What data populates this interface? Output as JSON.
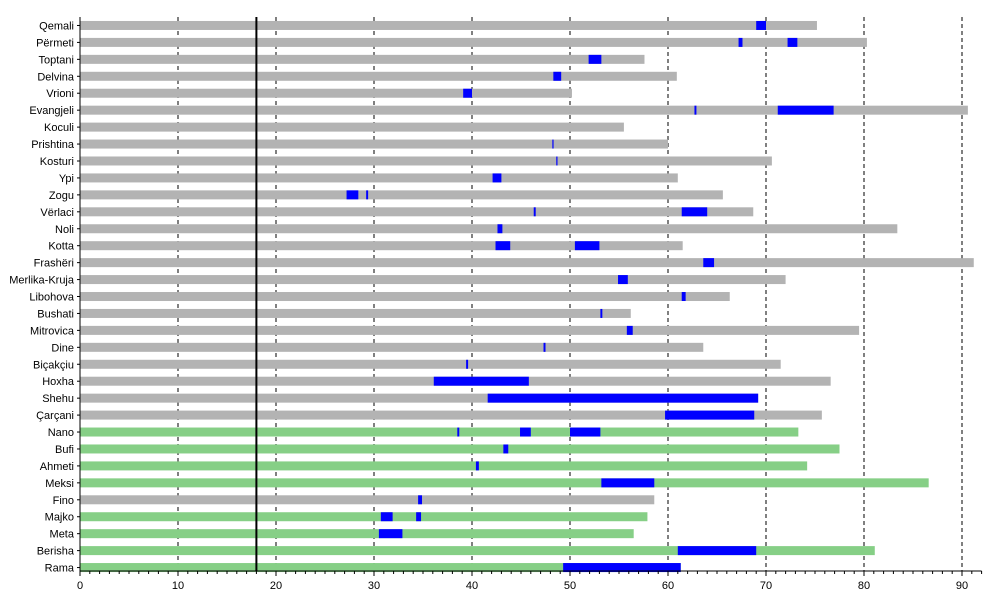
{
  "chart_data": {
    "type": "bar",
    "orientation": "horizontal",
    "xlim": [
      0,
      92
    ],
    "xticks": [
      0,
      10,
      20,
      30,
      40,
      50,
      60,
      70,
      80,
      90
    ],
    "minor_tick_step": 1,
    "grid": "vertical dashed at major ticks",
    "reference_line_x": 18,
    "colors": {
      "gray": "#b3b3b3",
      "green": "#86cf86",
      "blue": "#0000ff",
      "grid": "#000000"
    },
    "rows": [
      {
        "label": "Qemali",
        "end": 75.2,
        "color": "gray",
        "segments": [
          [
            69,
            70
          ]
        ]
      },
      {
        "label": "Përmeti",
        "end": 80.3,
        "color": "gray",
        "segments": [
          [
            67.2,
            67.6
          ],
          [
            72.2,
            73.2
          ]
        ]
      },
      {
        "label": "Toptani",
        "end": 57.6,
        "color": "gray",
        "segments": [
          [
            51.9,
            53.2
          ]
        ]
      },
      {
        "label": "Delvina",
        "end": 60.9,
        "color": "gray",
        "segments": [
          [
            48.3,
            49.1
          ]
        ]
      },
      {
        "label": "Vrioni",
        "end": 50.2,
        "color": "gray",
        "segments": [
          [
            39.1,
            40
          ]
        ]
      },
      {
        "label": "Evangjeli",
        "end": 90.6,
        "color": "gray",
        "segments": [
          [
            62.7,
            62.9
          ],
          [
            71.2,
            76.9
          ]
        ]
      },
      {
        "label": "Koculi",
        "end": 55.5,
        "color": "gray",
        "segments": []
      },
      {
        "label": "Prishtina",
        "end": 60,
        "color": "gray",
        "segments": [
          [
            48.2,
            48.3
          ]
        ]
      },
      {
        "label": "Kosturi",
        "end": 70.6,
        "color": "gray",
        "segments": [
          [
            48.6,
            48.7
          ]
        ]
      },
      {
        "label": "Ypi",
        "end": 61,
        "color": "gray",
        "segments": [
          [
            42.1,
            43
          ]
        ]
      },
      {
        "label": "Zogu",
        "end": 65.6,
        "color": "gray",
        "segments": [
          [
            27.2,
            28.4
          ],
          [
            29.2,
            29.4
          ]
        ]
      },
      {
        "label": "Vërlaci",
        "end": 68.7,
        "color": "gray",
        "segments": [
          [
            46.3,
            46.5
          ],
          [
            61.4,
            64
          ]
        ]
      },
      {
        "label": "Noli",
        "end": 83.4,
        "color": "gray",
        "segments": [
          [
            42.6,
            43.1
          ]
        ]
      },
      {
        "label": "Kotta",
        "end": 61.5,
        "color": "gray",
        "segments": [
          [
            42.4,
            43.9
          ],
          [
            50.5,
            53
          ]
        ]
      },
      {
        "label": "Frashëri",
        "end": 91.2,
        "color": "gray",
        "segments": [
          [
            63.6,
            64.7
          ]
        ]
      },
      {
        "label": "Merlika-Kruja",
        "end": 72,
        "color": "gray",
        "segments": [
          [
            54.9,
            55.9
          ]
        ]
      },
      {
        "label": "Libohova",
        "end": 66.3,
        "color": "gray",
        "segments": [
          [
            61.4,
            61.8
          ]
        ]
      },
      {
        "label": "Bushati",
        "end": 56.2,
        "color": "gray",
        "segments": [
          [
            53.1,
            53.3
          ]
        ]
      },
      {
        "label": "Mitrovica",
        "end": 79.5,
        "color": "gray",
        "segments": [
          [
            55.8,
            56.4
          ]
        ]
      },
      {
        "label": "Dine",
        "end": 63.6,
        "color": "gray",
        "segments": [
          [
            47.3,
            47.5
          ]
        ]
      },
      {
        "label": "Biçakçiu",
        "end": 71.5,
        "color": "gray",
        "segments": [
          [
            39.4,
            39.6
          ]
        ]
      },
      {
        "label": "Hoxha",
        "end": 76.6,
        "color": "gray",
        "segments": [
          [
            36.1,
            45.8
          ]
        ]
      },
      {
        "label": "Shehu",
        "end": 69.2,
        "color": "gray",
        "segments": [
          [
            41.6,
            69.2
          ]
        ]
      },
      {
        "label": "Çarçani",
        "end": 75.7,
        "color": "gray",
        "segments": [
          [
            59.7,
            68.8
          ]
        ]
      },
      {
        "label": "Nano",
        "end": 73.3,
        "color": "green",
        "segments": [
          [
            38.5,
            38.7
          ],
          [
            44.9,
            46
          ],
          [
            50,
            53.1
          ]
        ]
      },
      {
        "label": "Bufi",
        "end": 77.5,
        "color": "green",
        "segments": [
          [
            43.2,
            43.7
          ]
        ]
      },
      {
        "label": "Ahmeti",
        "end": 74.2,
        "color": "green",
        "segments": [
          [
            40.4,
            40.7
          ]
        ]
      },
      {
        "label": "Meksi",
        "end": 86.6,
        "color": "green",
        "segments": [
          [
            53.2,
            58.6
          ]
        ]
      },
      {
        "label": "Fino",
        "end": 58.6,
        "color": "gray",
        "segments": [
          [
            34.5,
            34.9
          ]
        ]
      },
      {
        "label": "Majko",
        "end": 57.9,
        "color": "green",
        "segments": [
          [
            30.7,
            31.9
          ],
          [
            34.3,
            34.8
          ]
        ]
      },
      {
        "label": "Meta",
        "end": 56.5,
        "color": "green",
        "segments": [
          [
            30.5,
            32.9
          ]
        ]
      },
      {
        "label": "Berisha",
        "end": 81.1,
        "color": "green",
        "segments": [
          [
            61,
            69
          ]
        ]
      },
      {
        "label": "Rama",
        "end": 61.3,
        "color": "green",
        "segments": [
          [
            49.3,
            61.3
          ]
        ]
      }
    ]
  }
}
